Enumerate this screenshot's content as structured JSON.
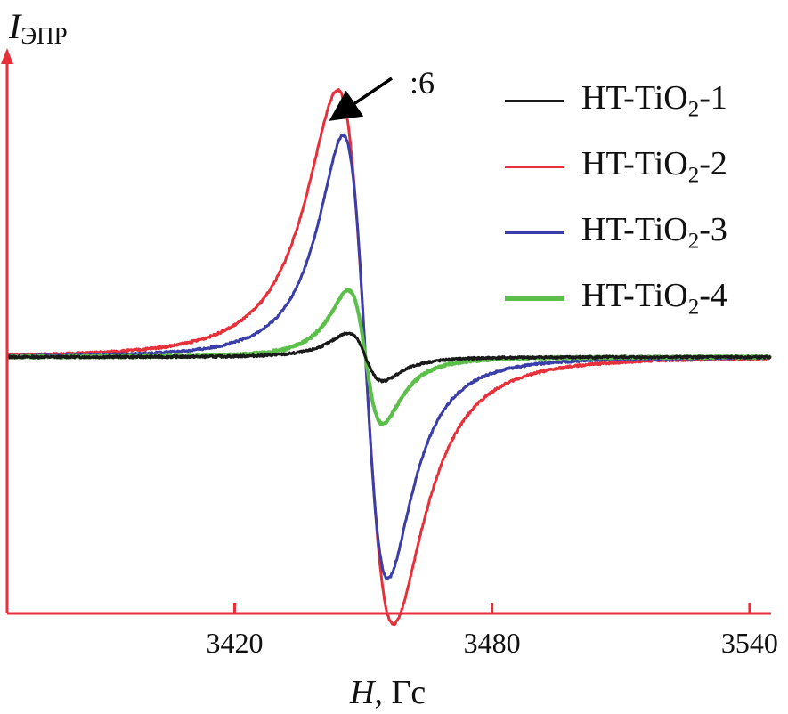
{
  "chart_data": {
    "type": "line",
    "ylabel": {
      "main": "I",
      "sub": "ЭПР"
    },
    "xlabel": {
      "italic": "H",
      "rest": ", Гс"
    },
    "xlim": [
      3367,
      3545
    ],
    "ylim": [
      -0.95,
      1.02
    ],
    "xticks": [
      3420,
      3480,
      3540
    ],
    "xtick_labels": [
      "3420",
      "3480",
      "3540"
    ],
    "grid": false,
    "legend_position": "top-right",
    "annotation": ":6",
    "annotation_target": {
      "x": 3448,
      "y": 0.88
    },
    "series": [
      {
        "name_prefix": "HT-TiO",
        "name_sub": "2",
        "name_suffix": "-1",
        "color": "#1a1a1a",
        "amplitude": 0.09,
        "field_center": 3450.5,
        "half_width": 4.0
      },
      {
        "name_prefix": "HT-TiO",
        "name_sub": "2",
        "name_suffix": "-2",
        "color": "#e8303a",
        "amplitude": 1.0,
        "field_center": 3450.5,
        "half_width": 6.5
      },
      {
        "name_prefix": "HT-TiO",
        "name_sub": "2",
        "name_suffix": "-3",
        "color": "#3a3ea8",
        "amplitude": 0.83,
        "field_center": 3450.5,
        "half_width": 5.2
      },
      {
        "name_prefix": "HT-TiO",
        "name_sub": "2",
        "name_suffix": "-4",
        "color": "#5cbf4a",
        "amplitude": 0.25,
        "field_center": 3450.5,
        "half_width": 4.0
      }
    ]
  }
}
